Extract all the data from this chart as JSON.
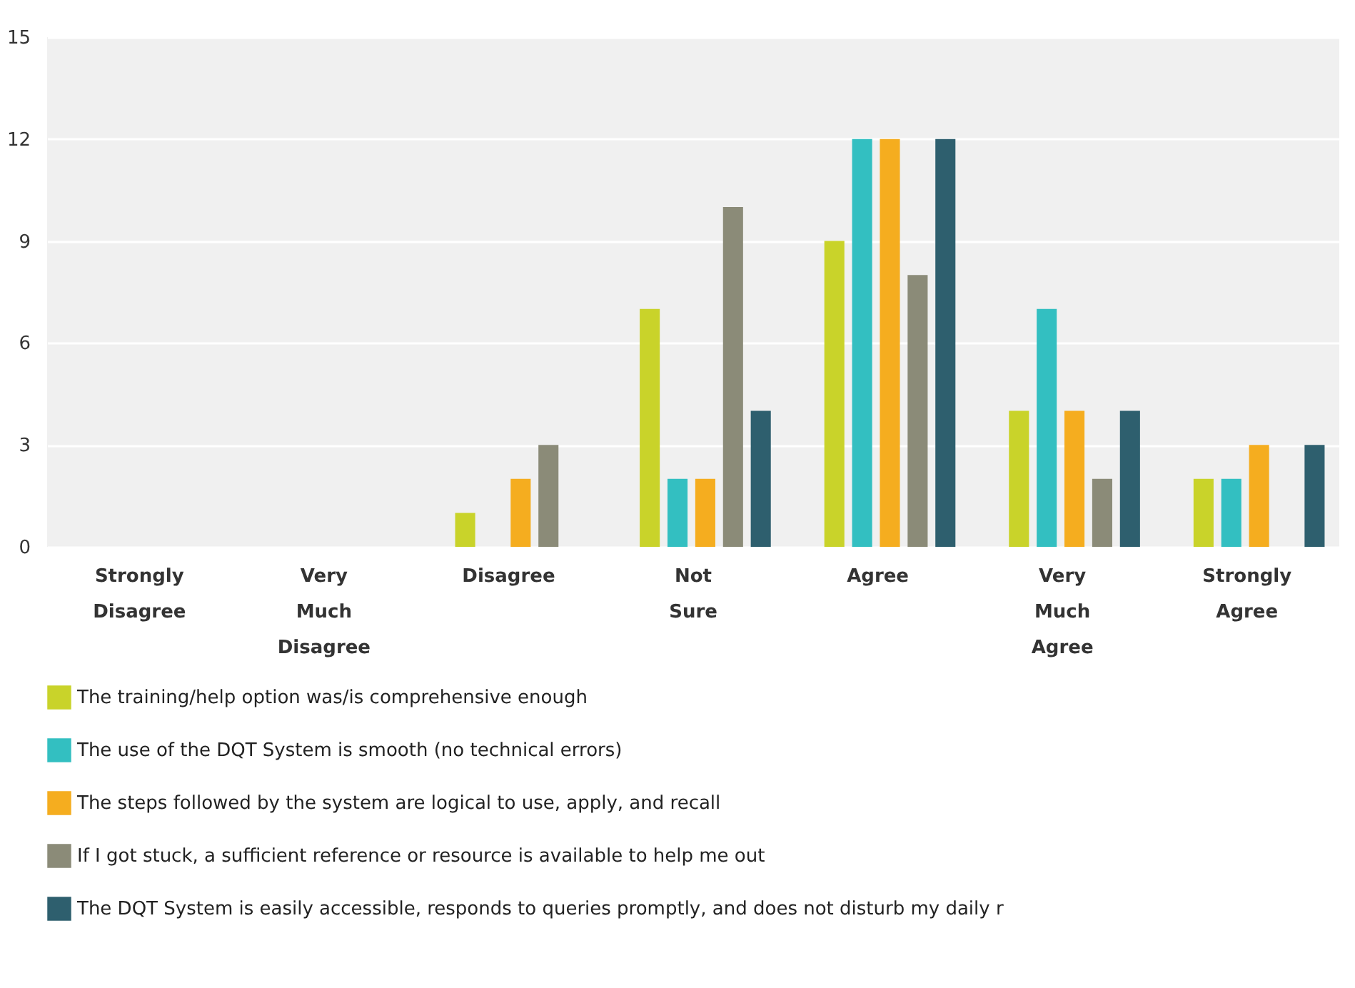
{
  "chart_data": {
    "type": "bar",
    "categories": [
      "Strongly Disagree",
      "Very Much Disagree",
      "Disagree",
      "Not Sure",
      "Agree",
      "Very Much Agree",
      "Strongly Agree"
    ],
    "series": [
      {
        "name": "The training/help option was/is comprehensive enough",
        "color": "#c9d32a",
        "values": [
          0,
          0,
          1,
          7,
          9,
          4,
          2
        ]
      },
      {
        "name": "The use of the DQT System is smooth (no technical errors)",
        "color": "#33bfc1",
        "values": [
          0,
          0,
          0,
          2,
          12,
          7,
          2
        ]
      },
      {
        "name": "The steps followed by the system are logical to use, apply, and recall",
        "color": "#f5ad1f",
        "values": [
          0,
          0,
          2,
          2,
          12,
          4,
          3
        ]
      },
      {
        "name": "If I got stuck, a sufficient reference or resource is available to help me out",
        "color": "#8b8b78",
        "values": [
          0,
          0,
          3,
          10,
          8,
          2,
          0
        ]
      },
      {
        "name": "The DQT System is easily accessible, responds to queries promptly, and does not disturb my daily r",
        "color": "#2e5f6e",
        "values": [
          0,
          0,
          0,
          4,
          12,
          4,
          3
        ]
      }
    ],
    "ylim": [
      0,
      15
    ],
    "yticks": [
      0,
      3,
      6,
      9,
      12,
      15
    ],
    "grid": "y",
    "legend": "bottom"
  }
}
